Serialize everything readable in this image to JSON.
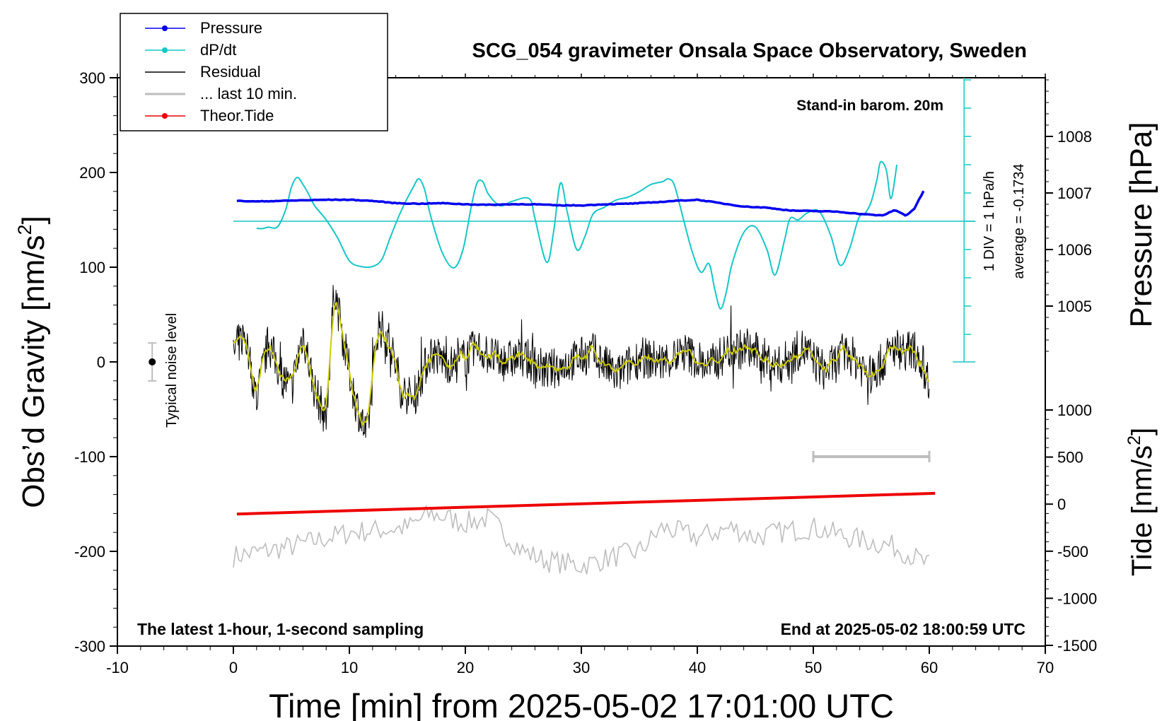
{
  "chart_data": {
    "type": "line",
    "title": "SCG_054 gravimeter Onsala Space Observatory, Sweden",
    "xlabel": "Time [min] from 2025-05-02 17:01:00 UTC",
    "ylabel": "Obs’d Gravity [nm/s",
    "ylabel_sup": "2",
    "ylabel_end": "]",
    "right_top_label": "Pressure [hPa]",
    "right_bottom_label": "Tide [nm/s",
    "right_bottom_sup": "2",
    "right_bottom_end": "]",
    "xlim": [
      -10,
      70
    ],
    "ylim": [
      -300,
      300
    ],
    "pressure_lim": [
      1004.0,
      1009.0
    ],
    "tide_lim": [
      -1500,
      1000
    ],
    "x_ticks": [
      "-10",
      "0",
      "10",
      "20",
      "30",
      "40",
      "50",
      "60",
      "70"
    ],
    "x_tick_values": [
      -10,
      0,
      10,
      20,
      30,
      40,
      50,
      60,
      70
    ],
    "y_ticks": [
      "300",
      "200",
      "100",
      "0",
      "-100",
      "-200",
      "-300"
    ],
    "y_tick_values": [
      300,
      200,
      100,
      0,
      -100,
      -200,
      -300
    ],
    "pressure_ticks": [
      "1008",
      "1007",
      "1006",
      "1005"
    ],
    "pressure_tick_values": [
      1008,
      1007,
      1006,
      1005
    ],
    "tide_ticks": [
      "1000",
      "500",
      "0",
      "-500",
      "-1000",
      "-1500"
    ],
    "tide_tick_values": [
      1000,
      500,
      0,
      -500,
      -1000,
      -1500
    ],
    "annotations": {
      "barometer": "Stand-in barom. 20m",
      "bottom_left": "The latest 1-hour, 1-second sampling",
      "bottom_right": "End at 2025-05-02 18:00:59 UTC",
      "noise": "Typical noise level",
      "dpdt_scale": "1 DIV = 1 hPa/h",
      "dpdt_average": "average = -0.1734"
    },
    "legend": [
      {
        "label": "Pressure",
        "color": "#0000ee",
        "marker": true
      },
      {
        "label": "dP/dt",
        "color": "#17c6c6",
        "marker": true
      },
      {
        "label": "Residual",
        "color": "#000000",
        "marker": false
      },
      {
        "label": "... last 10 min.",
        "color": "#bdbdbd",
        "marker": false
      },
      {
        "label": "Theor.Tide",
        "color": "#ee0000",
        "marker": true
      }
    ],
    "series": [
      {
        "name": "Pressure",
        "axis": "pressure",
        "color": "#0000ee",
        "x": [
          0.3,
          2,
          4,
          6,
          8,
          10,
          12,
          14,
          16,
          18,
          20,
          22,
          24,
          26,
          28,
          30,
          32,
          34,
          36,
          38,
          40,
          42,
          44,
          46,
          48,
          50,
          52,
          54,
          56,
          57,
          58,
          58.7,
          59.5
        ],
        "y": [
          1006.86,
          1006.85,
          1006.86,
          1006.87,
          1006.88,
          1006.88,
          1006.86,
          1006.82,
          1006.81,
          1006.82,
          1006.8,
          1006.79,
          1006.8,
          1006.8,
          1006.78,
          1006.78,
          1006.8,
          1006.81,
          1006.83,
          1006.86,
          1006.88,
          1006.82,
          1006.76,
          1006.74,
          1006.69,
          1006.68,
          1006.67,
          1006.63,
          1006.6,
          1006.7,
          1006.6,
          1006.72,
          1007.03
        ]
      },
      {
        "name": "dP/dt",
        "axis": "dpdt",
        "color": "#17c6c6",
        "x": [
          2,
          2.5,
          3,
          3.8,
          4.5,
          5,
          5.5,
          6,
          6.5,
          7,
          8,
          9,
          10,
          11,
          12,
          12.8,
          13.5,
          14.5,
          15.5,
          16,
          16.5,
          17,
          18,
          19,
          19.8,
          20.5,
          21,
          21.5,
          22,
          23,
          24,
          25.5,
          26,
          27,
          27.6,
          28.2,
          28.8,
          29.6,
          30.3,
          31,
          32,
          33,
          34,
          35,
          36,
          37,
          37.5,
          38,
          38.6,
          39.5,
          40.3,
          41,
          41.5,
          42,
          42.5,
          43,
          44,
          45,
          46,
          46.7,
          47.5,
          48,
          48.7,
          49.5,
          50.5,
          51.5,
          52.3,
          53.1,
          53.9,
          54.5,
          55,
          55.5,
          55.8,
          56.3,
          56.7,
          57.2
        ],
        "y": [
          -0.25,
          -0.26,
          -0.21,
          -0.2,
          0.4,
          1.2,
          1.55,
          1.3,
          0.95,
          0.55,
          0.05,
          -0.6,
          -1.4,
          -1.6,
          -1.6,
          -1.35,
          -0.6,
          0.4,
          1.2,
          1.5,
          1.1,
          0.2,
          -1.1,
          -1.65,
          -1.0,
          0.5,
          1.35,
          1.4,
          0.95,
          0.55,
          0.7,
          0.8,
          0.1,
          -1.45,
          -0.4,
          1.35,
          0.3,
          -1.0,
          -0.55,
          0.25,
          0.5,
          0.75,
          0.85,
          1.05,
          1.3,
          1.4,
          1.5,
          1.3,
          0.4,
          -1.0,
          -1.8,
          -1.5,
          -2.4,
          -3.1,
          -2.5,
          -1.5,
          -0.4,
          -0.2,
          -1.0,
          -1.9,
          -0.7,
          0.1,
          0.05,
          0.3,
          0.35,
          -0.5,
          -1.55,
          -1.0,
          0.1,
          0.3,
          0.7,
          1.5,
          2.1,
          1.8,
          0.8,
          2.0
        ]
      },
      {
        "name": "Residual",
        "axis": "gravity",
        "color": "#000000",
        "envelope_x": [
          0,
          1,
          2,
          3,
          4,
          5,
          6,
          7,
          8,
          8.7,
          9.5,
          10.5,
          11.5,
          12.5,
          13.5,
          14.5,
          15.5,
          17,
          19,
          21,
          23,
          25,
          27,
          29,
          31,
          33,
          35,
          37,
          39,
          41,
          43,
          45,
          47,
          49,
          51,
          53,
          55,
          57,
          59,
          60
        ],
        "envelope_y": [
          10,
          30,
          -40,
          20,
          -10,
          -30,
          30,
          -30,
          -60,
          80,
          20,
          -40,
          -80,
          40,
          20,
          -30,
          -40,
          10,
          -5,
          15,
          0,
          5,
          -10,
          0,
          10,
          -15,
          5,
          0,
          10,
          -5,
          15,
          10,
          -5,
          15,
          -10,
          10,
          -15,
          15,
          10,
          -20
        ],
        "amplitude": 22
      },
      {
        "name": "... last 10 min.",
        "axis": "gravity",
        "color": "#bdbdbd",
        "note": "last 10 minutes of residual, drawn stretched over 0–60 min with -200 offset",
        "envelope_x": [
          0,
          5,
          10,
          15,
          17,
          20,
          22,
          25,
          27,
          30,
          33,
          35,
          37,
          40,
          43,
          45,
          47,
          50,
          53,
          55,
          57,
          60
        ],
        "envelope_y": [
          -205,
          -195,
          -180,
          -175,
          -160,
          -170,
          -165,
          -200,
          -210,
          -215,
          -205,
          -200,
          -175,
          -185,
          -175,
          -185,
          -180,
          -175,
          -185,
          -190,
          -195,
          -215
        ],
        "amplitude": 12
      },
      {
        "name": "Theor.Tide",
        "axis": "tide",
        "color": "#ee0000",
        "x": [
          0.3,
          60.5
        ],
        "y": [
          -105,
          115
        ]
      }
    ],
    "overlays": {
      "last_10_min_bar": {
        "x": [
          50,
          60
        ],
        "y": -100
      },
      "noise_bar": {
        "x": -7,
        "y_min": -20,
        "y_max": 20,
        "center": 0
      },
      "dpdt_zero": 1006.5,
      "dpdt_scale_axis_x": 63
    }
  }
}
